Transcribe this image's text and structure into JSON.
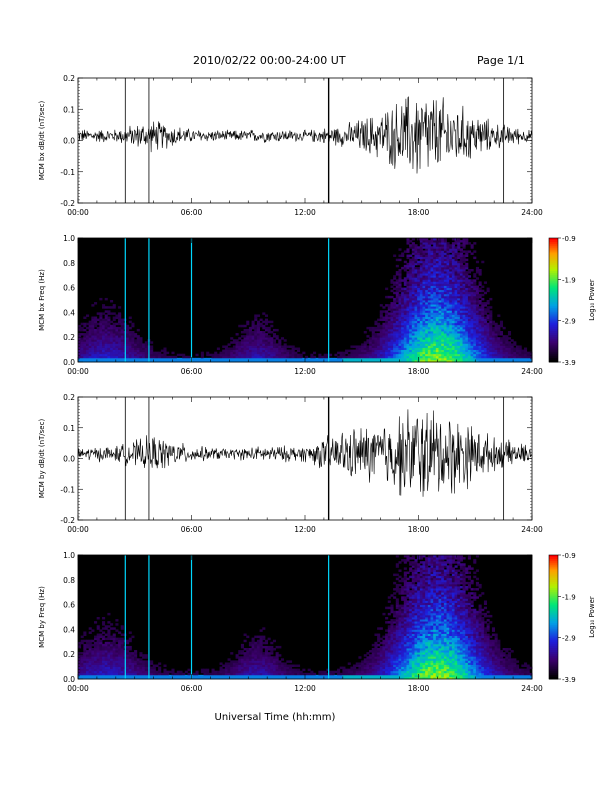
{
  "header": {
    "title": "2010/02/22  00:00-24:00 UT",
    "page": "Page 1/1"
  },
  "footer": {
    "xlabel": "Universal Time (hh:mm)"
  },
  "colors": {
    "spec_bg": "#000000",
    "trace": "#000000"
  },
  "chart_data": [
    {
      "type": "line",
      "ylabel": "MCM bx dB/dt (nT/sec)",
      "ylim": [
        -0.2,
        0.2
      ],
      "yticks": [
        "0.2",
        "0.1",
        "0.0",
        "-0.1",
        "-0.2"
      ],
      "xlim": [
        0,
        24
      ],
      "xticks": [
        "00:00",
        "06:00",
        "12:00",
        "18:00",
        "24:00"
      ],
      "series": [
        {
          "x_hours": [
            0,
            2,
            4,
            6,
            8,
            10,
            12,
            14,
            16,
            18,
            20,
            22,
            24
          ],
          "amplitude": [
            0.025,
            0.025,
            0.06,
            0.025,
            0.02,
            0.025,
            0.02,
            0.04,
            0.09,
            0.18,
            0.12,
            0.05,
            0.02
          ]
        }
      ],
      "spikes_hours": [
        2.5,
        3.75,
        13.25,
        22.5
      ]
    },
    {
      "type": "heatmap",
      "ylabel": "MCM bx Freq (Hz)",
      "ylim": [
        0.0,
        1.0
      ],
      "yticks": [
        "1.0",
        "0.8",
        "0.6",
        "0.4",
        "0.2",
        "0.0"
      ],
      "xlim": [
        0,
        24
      ],
      "xticks": [
        "00:00",
        "06:00",
        "12:00",
        "18:00",
        "24:00"
      ],
      "colorbar": {
        "label": "Log₁₀ Power",
        "range": [
          -3.9,
          -0.9
        ],
        "ticks": [
          "-0.9",
          "-1.9",
          "-2.9",
          "-3.9"
        ]
      },
      "lines_hours": [
        2.5,
        3.75,
        6.0,
        13.25
      ]
    },
    {
      "type": "line",
      "ylabel": "MCM by dB/dt (nT/sec)",
      "ylim": [
        -0.2,
        0.2
      ],
      "yticks": [
        "0.2",
        "0.1",
        "0.0",
        "-0.1",
        "-0.2"
      ],
      "xlim": [
        0,
        24
      ],
      "xticks": [
        "00:00",
        "06:00",
        "12:00",
        "18:00",
        "24:00"
      ],
      "series": [
        {
          "x_hours": [
            0,
            2,
            4,
            6,
            8,
            10,
            12,
            14,
            16,
            18,
            20,
            22,
            24
          ],
          "amplitude": [
            0.025,
            0.03,
            0.07,
            0.03,
            0.02,
            0.03,
            0.03,
            0.09,
            0.12,
            0.19,
            0.15,
            0.06,
            0.03
          ]
        }
      ],
      "spikes_hours": [
        2.5,
        3.75,
        13.25,
        22.5
      ]
    },
    {
      "type": "heatmap",
      "ylabel": "MCM by Freq (Hz)",
      "ylim": [
        0.0,
        1.0
      ],
      "yticks": [
        "1.0",
        "0.8",
        "0.6",
        "0.4",
        "0.2",
        "0.0"
      ],
      "xlim": [
        0,
        24
      ],
      "xticks": [
        "00:00",
        "06:00",
        "12:00",
        "18:00",
        "24:00"
      ],
      "colorbar": {
        "label": "Log₁₀ Power",
        "range": [
          -3.9,
          -0.9
        ],
        "ticks": [
          "-0.9",
          "-1.9",
          "-2.9",
          "-3.9"
        ]
      },
      "lines_hours": [
        2.5,
        3.75,
        6.0,
        13.25
      ]
    }
  ]
}
